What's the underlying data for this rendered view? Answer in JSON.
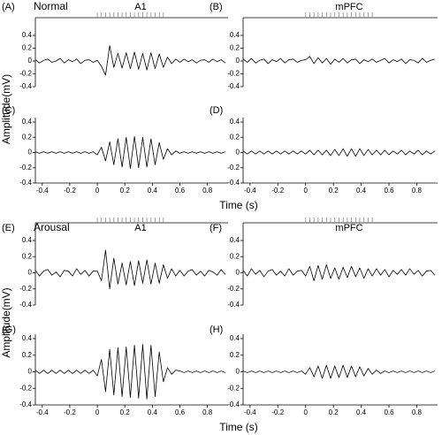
{
  "chart_data": [
    {
      "type": "line",
      "panel_label": "(A)",
      "condition": "Normal",
      "title": "A1",
      "ylabel": "Amplitude(mV)",
      "x": [
        -0.45,
        -0.42,
        -0.39,
        -0.36,
        -0.33,
        -0.3,
        -0.27,
        -0.24,
        -0.21,
        -0.18,
        -0.15,
        -0.12,
        -0.09,
        -0.06,
        -0.03,
        0,
        0.03,
        0.06,
        0.09,
        0.12,
        0.15,
        0.18,
        0.21,
        0.24,
        0.27,
        0.3,
        0.33,
        0.36,
        0.39,
        0.42,
        0.45,
        0.48,
        0.51,
        0.54,
        0.57,
        0.6,
        0.63,
        0.66,
        0.69,
        0.72,
        0.75,
        0.78,
        0.81,
        0.84,
        0.87,
        0.9,
        0.93
      ],
      "values": [
        0.02,
        -0.03,
        0.01,
        0.03,
        -0.02,
        0,
        0.04,
        -0.03,
        0.02,
        -0.01,
        0.03,
        -0.04,
        0.01,
        0.02,
        -0.02,
        0.01,
        -0.08,
        -0.22,
        0.24,
        -0.1,
        0.12,
        -0.11,
        0.13,
        -0.12,
        0.14,
        -0.13,
        0.12,
        -0.14,
        0.13,
        -0.12,
        0.11,
        -0.1,
        0.06,
        -0.04,
        0.03,
        -0.02,
        0.03,
        -0.01,
        0.02,
        -0.03,
        0.01,
        0.02,
        -0.02,
        0.03,
        -0.01,
        0.02,
        -0.03
      ],
      "stimulus": [
        0,
        0.03,
        0.06,
        0.09,
        0.12,
        0.15,
        0.18,
        0.21,
        0.24,
        0.27,
        0.3,
        0.33,
        0.36,
        0.39,
        0.42,
        0.45,
        0.48
      ],
      "color": "#000000",
      "xlim": [
        -0.45,
        0.95
      ],
      "ylim": [
        -0.4,
        0.4
      ],
      "yticks": [
        0.4,
        0.2,
        0,
        -0.2,
        -0.4
      ]
    },
    {
      "type": "line",
      "panel_label": "(B)",
      "title": "mPFC",
      "x": [
        -0.45,
        -0.42,
        -0.39,
        -0.36,
        -0.33,
        -0.3,
        -0.27,
        -0.24,
        -0.21,
        -0.18,
        -0.15,
        -0.12,
        -0.09,
        -0.06,
        -0.03,
        0,
        0.03,
        0.06,
        0.09,
        0.12,
        0.15,
        0.18,
        0.21,
        0.24,
        0.27,
        0.3,
        0.33,
        0.36,
        0.39,
        0.42,
        0.45,
        0.48,
        0.51,
        0.54,
        0.57,
        0.6,
        0.63,
        0.66,
        0.69,
        0.72,
        0.75,
        0.78,
        0.81,
        0.84,
        0.87,
        0.9,
        0.93
      ],
      "values": [
        0.03,
        -0.02,
        0.04,
        -0.03,
        0.01,
        0.03,
        -0.04,
        0.02,
        -0.01,
        0.04,
        -0.03,
        0.02,
        0.03,
        -0.02,
        0.01,
        0.02,
        0.07,
        -0.04,
        0.05,
        -0.03,
        0.04,
        -0.05,
        0.03,
        -0.02,
        0.04,
        -0.03,
        0.02,
        0.03,
        -0.04,
        0.02,
        -0.01,
        0.03,
        -0.02,
        0.01,
        0.04,
        -0.03,
        0.02,
        -0.01,
        0.03,
        -0.04,
        0.02,
        0.01,
        -0.03,
        0.04,
        -0.02,
        0.01,
        0.03
      ],
      "stimulus": [
        0,
        0.03,
        0.06,
        0.09,
        0.12,
        0.15,
        0.18,
        0.21,
        0.24,
        0.27,
        0.3,
        0.33,
        0.36,
        0.39,
        0.42,
        0.45,
        0.48
      ],
      "color": "#000000",
      "xlim": [
        -0.45,
        0.95
      ],
      "ylim": [
        -0.4,
        0.4
      ],
      "yticks": [
        0.4,
        0.2,
        0,
        -0.2,
        -0.4
      ]
    },
    {
      "type": "line",
      "panel_label": "(C)",
      "xlabel": "Time (s)",
      "x": [
        -0.45,
        -0.42,
        -0.39,
        -0.36,
        -0.33,
        -0.3,
        -0.27,
        -0.24,
        -0.21,
        -0.18,
        -0.15,
        -0.12,
        -0.09,
        -0.06,
        -0.03,
        0,
        0.03,
        0.06,
        0.09,
        0.12,
        0.15,
        0.18,
        0.21,
        0.24,
        0.27,
        0.3,
        0.33,
        0.36,
        0.39,
        0.42,
        0.45,
        0.48,
        0.51,
        0.54,
        0.57,
        0.6,
        0.63,
        0.66,
        0.69,
        0.72,
        0.75,
        0.78,
        0.81,
        0.84,
        0.87,
        0.9,
        0.93
      ],
      "values": [
        0.01,
        -0.01,
        0.01,
        -0.01,
        0.01,
        -0.01,
        0.01,
        -0.01,
        0.01,
        -0.01,
        0.01,
        -0.01,
        0.01,
        -0.01,
        0.01,
        -0.03,
        0.07,
        -0.11,
        0.14,
        -0.16,
        0.18,
        -0.19,
        0.2,
        -0.21,
        0.21,
        -0.2,
        0.2,
        -0.19,
        0.18,
        -0.16,
        0.13,
        -0.09,
        0.05,
        -0.03,
        0.02,
        -0.01,
        0.01,
        -0.01,
        0.01,
        -0.01,
        0.01,
        -0.01,
        0.01,
        -0.01,
        0.01,
        -0.01,
        0.01
      ],
      "color": "#000000",
      "xlim": [
        -0.45,
        0.95
      ],
      "ylim": [
        -0.4,
        0.4
      ],
      "yticks": [
        0.4,
        0.2,
        0,
        -0.2,
        -0.4
      ],
      "xticks": [
        -0.4,
        -0.2,
        0,
        0.2,
        0.4,
        0.6,
        0.8
      ]
    },
    {
      "type": "line",
      "panel_label": "(D)",
      "x": [
        -0.45,
        -0.42,
        -0.39,
        -0.36,
        -0.33,
        -0.3,
        -0.27,
        -0.24,
        -0.21,
        -0.18,
        -0.15,
        -0.12,
        -0.09,
        -0.06,
        -0.03,
        0,
        0.03,
        0.06,
        0.09,
        0.12,
        0.15,
        0.18,
        0.21,
        0.24,
        0.27,
        0.3,
        0.33,
        0.36,
        0.39,
        0.42,
        0.45,
        0.48,
        0.51,
        0.54,
        0.57,
        0.6,
        0.63,
        0.66,
        0.69,
        0.72,
        0.75,
        0.78,
        0.81,
        0.84,
        0.87,
        0.9,
        0.93
      ],
      "values": [
        0.02,
        -0.02,
        0.02,
        -0.02,
        0.02,
        -0.02,
        0.02,
        -0.02,
        0.02,
        -0.02,
        0.02,
        -0.02,
        0.02,
        -0.02,
        0.02,
        -0.02,
        0.03,
        -0.03,
        0.03,
        -0.03,
        0.03,
        -0.04,
        0.04,
        -0.04,
        0.05,
        -0.05,
        0.05,
        -0.05,
        0.05,
        -0.04,
        0.04,
        -0.03,
        0.03,
        -0.03,
        0.03,
        -0.03,
        0.02,
        -0.02,
        0.03,
        -0.03,
        0.02,
        -0.02,
        0.03,
        -0.03,
        0.02,
        -0.02,
        0.02
      ],
      "color": "#000000",
      "xlim": [
        -0.45,
        0.95
      ],
      "ylim": [
        -0.4,
        0.4
      ],
      "yticks": [
        0.4,
        0.2,
        0,
        -0.2,
        -0.4
      ],
      "xticks": [
        -0.4,
        -0.2,
        0,
        0.2,
        0.4,
        0.6,
        0.8
      ]
    },
    {
      "type": "line",
      "panel_label": "(E)",
      "condition": "Arousal",
      "title": "A1",
      "ylabel": "Amplitude(mV)",
      "x": [
        -0.45,
        -0.42,
        -0.39,
        -0.36,
        -0.33,
        -0.3,
        -0.27,
        -0.24,
        -0.21,
        -0.18,
        -0.15,
        -0.12,
        -0.09,
        -0.06,
        -0.03,
        0,
        0.03,
        0.06,
        0.09,
        0.12,
        0.15,
        0.18,
        0.21,
        0.24,
        0.27,
        0.3,
        0.33,
        0.36,
        0.39,
        0.42,
        0.45,
        0.48,
        0.51,
        0.54,
        0.57,
        0.6,
        0.63,
        0.66,
        0.69,
        0.72,
        0.75,
        0.78,
        0.81,
        0.84,
        0.87,
        0.9,
        0.93
      ],
      "values": [
        0.03,
        -0.04,
        0.02,
        0.04,
        -0.03,
        0.01,
        -0.05,
        0.03,
        0.02,
        -0.04,
        0.05,
        -0.02,
        0.03,
        -0.04,
        0.02,
        0.02,
        -0.1,
        0.28,
        -0.2,
        0.18,
        -0.14,
        0.12,
        -0.15,
        0.14,
        -0.16,
        0.15,
        -0.13,
        0.16,
        -0.14,
        0.12,
        -0.13,
        0.1,
        -0.07,
        0.05,
        -0.04,
        0.03,
        -0.04,
        0.02,
        0.04,
        -0.03,
        0.02,
        -0.04,
        0.03,
        0.01,
        -0.03,
        0.04,
        -0.02
      ],
      "stimulus": [
        0,
        0.03,
        0.06,
        0.09,
        0.12,
        0.15,
        0.18,
        0.21,
        0.24,
        0.27,
        0.3,
        0.33,
        0.36,
        0.39,
        0.42,
        0.45,
        0.48
      ],
      "color": "#000000",
      "xlim": [
        -0.45,
        0.95
      ],
      "ylim": [
        -0.4,
        0.4
      ],
      "yticks": [
        0.4,
        0.2,
        0,
        -0.2,
        -0.4
      ]
    },
    {
      "type": "line",
      "panel_label": "(F)",
      "title": "mPFC",
      "x": [
        -0.45,
        -0.42,
        -0.39,
        -0.36,
        -0.33,
        -0.3,
        -0.27,
        -0.24,
        -0.21,
        -0.18,
        -0.15,
        -0.12,
        -0.09,
        -0.06,
        -0.03,
        0,
        0.03,
        0.06,
        0.09,
        0.12,
        0.15,
        0.18,
        0.21,
        0.24,
        0.27,
        0.3,
        0.33,
        0.36,
        0.39,
        0.42,
        0.45,
        0.48,
        0.51,
        0.54,
        0.57,
        0.6,
        0.63,
        0.66,
        0.69,
        0.72,
        0.75,
        0.78,
        0.81,
        0.84,
        0.87,
        0.9,
        0.93
      ],
      "values": [
        0.03,
        -0.04,
        0.05,
        -0.02,
        0.03,
        -0.05,
        0.02,
        0.04,
        -0.03,
        0.02,
        -0.04,
        0.05,
        -0.03,
        0.02,
        0.03,
        -0.04,
        0.08,
        -0.1,
        0.09,
        -0.08,
        0.1,
        -0.07,
        0.06,
        -0.08,
        0.07,
        -0.06,
        0.08,
        -0.05,
        0.06,
        -0.07,
        0.05,
        -0.04,
        0.05,
        -0.03,
        0.04,
        -0.05,
        0.03,
        -0.02,
        0.04,
        -0.03,
        0.05,
        -0.02,
        0.03,
        -0.04,
        0.02,
        0.03,
        -0.03
      ],
      "stimulus": [
        0,
        0.03,
        0.06,
        0.09,
        0.12,
        0.15,
        0.18,
        0.21,
        0.24,
        0.27,
        0.3,
        0.33,
        0.36,
        0.39,
        0.42,
        0.45,
        0.48
      ],
      "color": "#000000",
      "xlim": [
        -0.45,
        0.95
      ],
      "ylim": [
        -0.4,
        0.4
      ],
      "yticks": [
        0.4,
        0.2,
        0,
        -0.2,
        -0.4
      ]
    },
    {
      "type": "line",
      "panel_label": "(G)",
      "xlabel": "Time (s)",
      "x": [
        -0.45,
        -0.42,
        -0.39,
        -0.36,
        -0.33,
        -0.3,
        -0.27,
        -0.24,
        -0.21,
        -0.18,
        -0.15,
        -0.12,
        -0.09,
        -0.06,
        -0.03,
        0,
        0.03,
        0.06,
        0.09,
        0.12,
        0.15,
        0.18,
        0.21,
        0.24,
        0.27,
        0.3,
        0.33,
        0.36,
        0.39,
        0.42,
        0.45,
        0.48,
        0.51,
        0.54,
        0.57,
        0.6,
        0.63,
        0.66,
        0.69,
        0.72,
        0.75,
        0.78,
        0.81,
        0.84,
        0.87,
        0.9,
        0.93
      ],
      "values": [
        0.02,
        -0.02,
        0.02,
        -0.02,
        0.02,
        -0.02,
        0.02,
        -0.02,
        0.02,
        -0.02,
        0.02,
        -0.02,
        0.02,
        -0.02,
        0.02,
        -0.05,
        0.15,
        -0.24,
        0.27,
        -0.28,
        0.29,
        -0.3,
        0.3,
        -0.31,
        0.32,
        -0.32,
        0.33,
        -0.33,
        0.32,
        -0.3,
        0.24,
        -0.12,
        0.05,
        -0.03,
        0.02,
        0.01,
        -0.01,
        0.01,
        -0.01,
        0.01,
        -0.01,
        0.01,
        -0.01,
        0.01,
        -0.01,
        0.01,
        -0.01
      ],
      "color": "#000000",
      "xlim": [
        -0.45,
        0.95
      ],
      "ylim": [
        -0.4,
        0.4
      ],
      "yticks": [
        0.4,
        0.2,
        0,
        -0.2,
        -0.4
      ],
      "xticks": [
        -0.4,
        -0.2,
        0,
        0.2,
        0.4,
        0.6,
        0.8
      ]
    },
    {
      "type": "line",
      "panel_label": "(H)",
      "x": [
        -0.45,
        -0.42,
        -0.39,
        -0.36,
        -0.33,
        -0.3,
        -0.27,
        -0.24,
        -0.21,
        -0.18,
        -0.15,
        -0.12,
        -0.09,
        -0.06,
        -0.03,
        0,
        0.03,
        0.06,
        0.09,
        0.12,
        0.15,
        0.18,
        0.21,
        0.24,
        0.27,
        0.3,
        0.33,
        0.36,
        0.39,
        0.42,
        0.45,
        0.48,
        0.51,
        0.54,
        0.57,
        0.6,
        0.63,
        0.66,
        0.69,
        0.72,
        0.75,
        0.78,
        0.81,
        0.84,
        0.87,
        0.9,
        0.93
      ],
      "values": [
        0.01,
        -0.01,
        0.01,
        -0.01,
        0.01,
        -0.01,
        0.01,
        -0.01,
        0.01,
        -0.01,
        0.01,
        -0.01,
        0.01,
        -0.01,
        0.01,
        -0.03,
        0.05,
        -0.06,
        0.07,
        -0.08,
        0.08,
        -0.08,
        0.07,
        -0.07,
        0.08,
        -0.07,
        0.07,
        -0.06,
        0.06,
        -0.05,
        0.04,
        -0.03,
        0.02,
        -0.02,
        0.01,
        -0.01,
        0.01,
        -0.01,
        0.01,
        -0.01,
        0.01,
        -0.01,
        0.01,
        -0.01,
        0.01,
        -0.01,
        0.01
      ],
      "color": "#000000",
      "xlim": [
        -0.45,
        0.95
      ],
      "ylim": [
        -0.4,
        0.4
      ],
      "yticks": [
        0.4,
        0.2,
        0,
        -0.2,
        -0.4
      ],
      "xticks": [
        -0.4,
        -0.2,
        0,
        0.2,
        0.4,
        0.6,
        0.8
      ]
    }
  ]
}
